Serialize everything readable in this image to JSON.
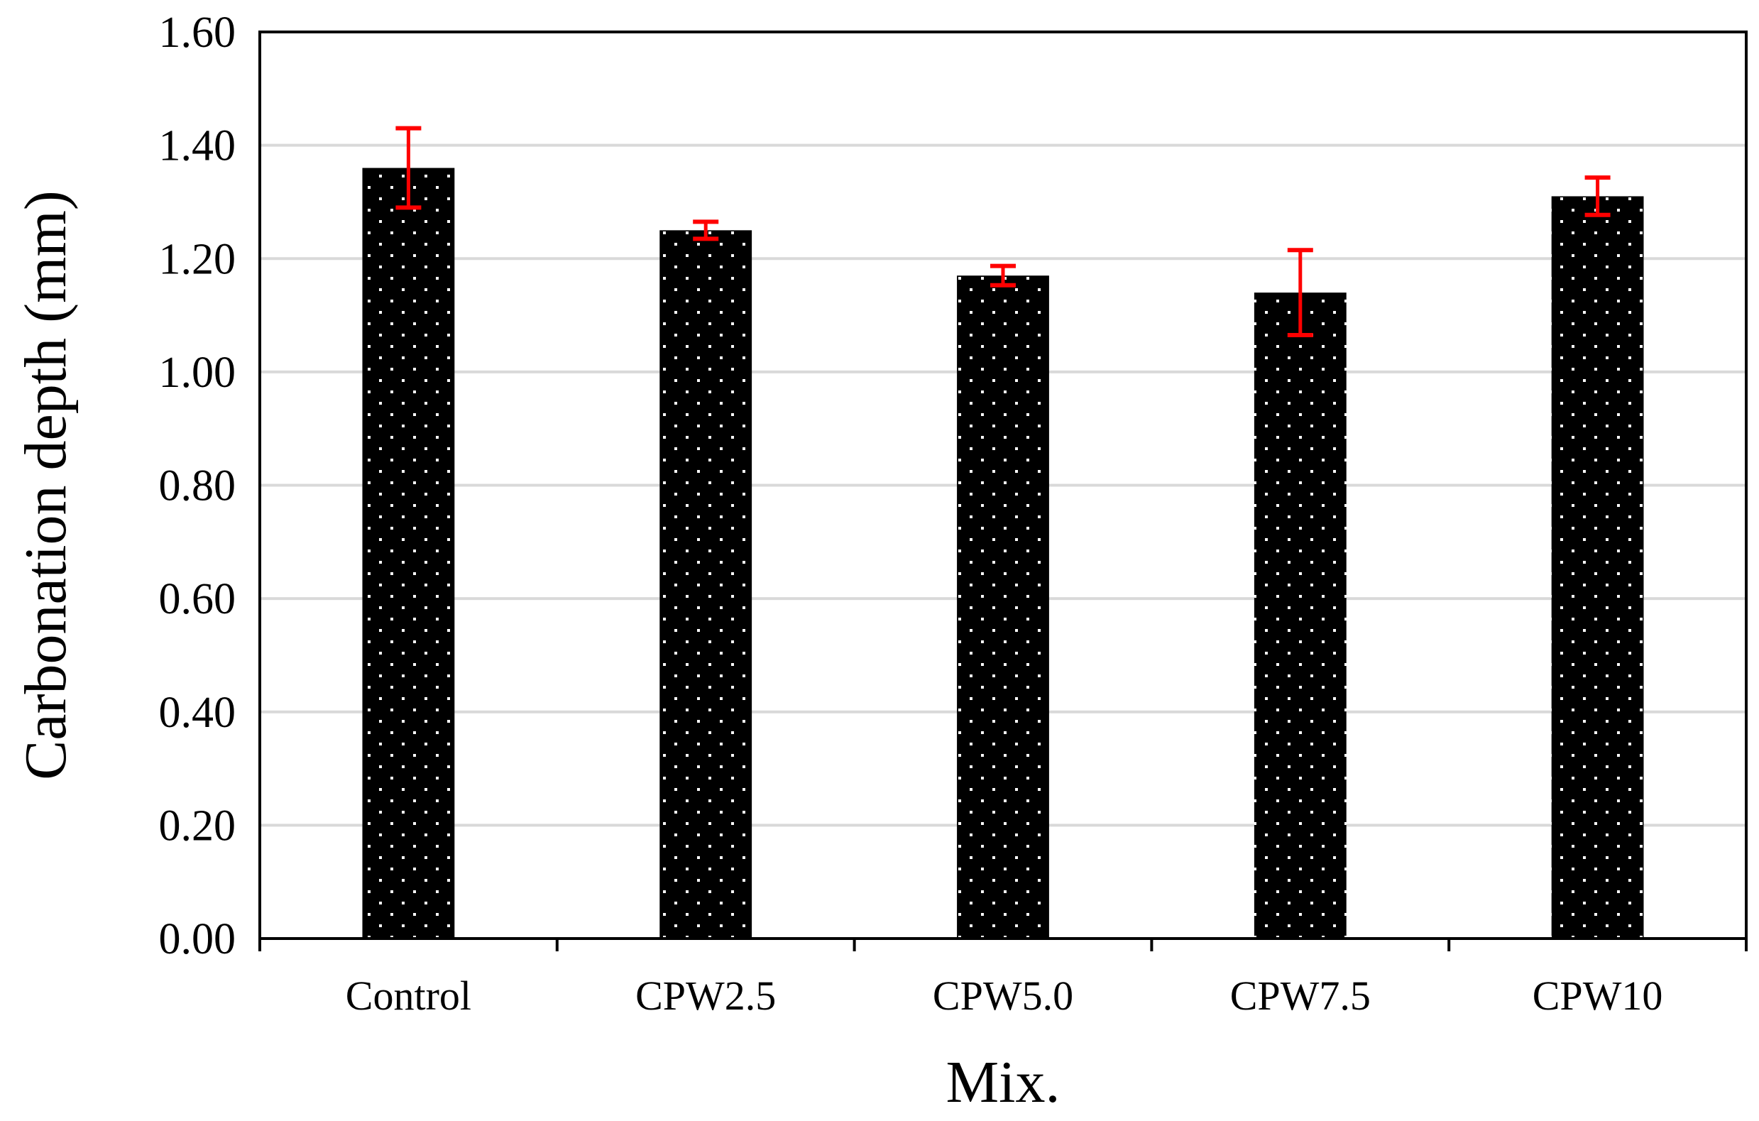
{
  "chart_data": {
    "type": "bar",
    "title": "",
    "xlabel": "Mix.",
    "ylabel": "Carbonation depth (mm)",
    "ylim": [
      0,
      1.6
    ],
    "ytick_step": 0.2,
    "ytick_labels": [
      "0.00",
      "0.20",
      "0.40",
      "0.60",
      "0.80",
      "1.00",
      "1.20",
      "1.40",
      "1.60"
    ],
    "categories": [
      "Control",
      "CPW2.5",
      "CPW5.0",
      "CPW7.5",
      "CPW10"
    ],
    "values": [
      1.36,
      1.25,
      1.17,
      1.14,
      1.31
    ],
    "error": [
      0.07,
      0.015,
      0.017,
      0.075,
      0.033
    ],
    "grid": true,
    "colors": {
      "bar": "#000000",
      "bar_dots": "#ffffff",
      "error_bar": "#ff0000",
      "grid": "#d9d9d9",
      "axis": "#000000"
    }
  }
}
